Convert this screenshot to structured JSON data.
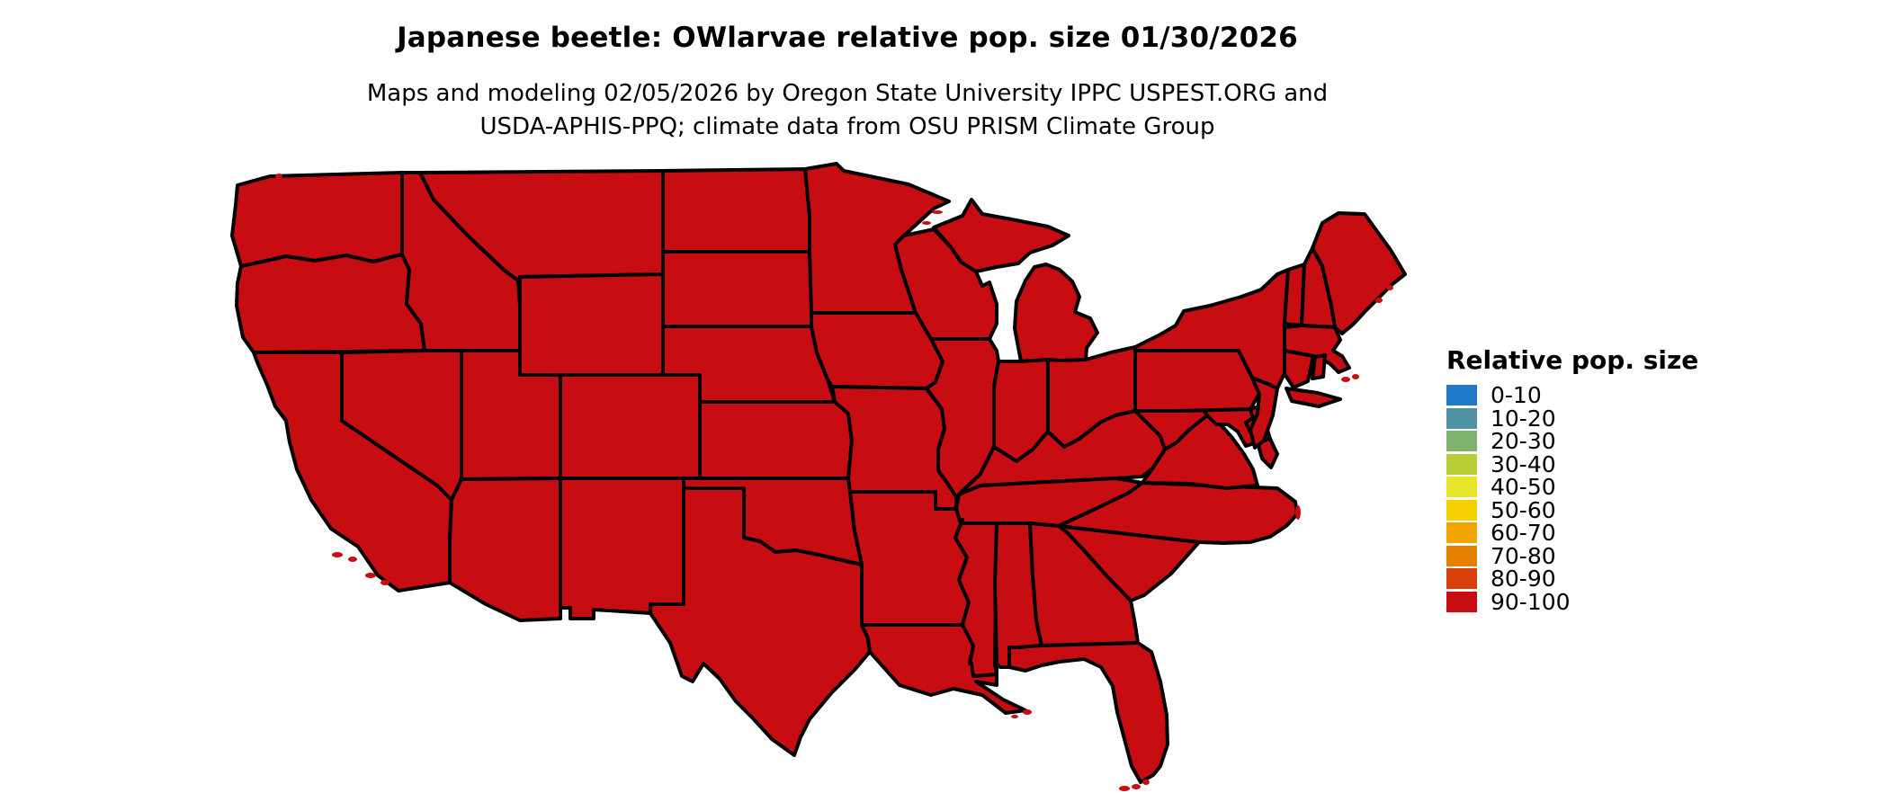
{
  "header": {
    "title": "Japanese beetle: OWlarvae relative pop. size 01/30/2026",
    "subtitle_line1": "Maps and modeling 02/05/2026 by Oregon State University IPPC USPEST.ORG and",
    "subtitle_line2": "USDA-APHIS-PPQ; climate data from OSU PRISM Climate Group"
  },
  "legend": {
    "title": "Relative pop. size",
    "items": [
      {
        "label": "0-10",
        "color": "#1f78c8"
      },
      {
        "label": "10-20",
        "color": "#4f93a2"
      },
      {
        "label": "20-30",
        "color": "#7eb36e"
      },
      {
        "label": "30-40",
        "color": "#b9cf35"
      },
      {
        "label": "40-50",
        "color": "#e8e62b"
      },
      {
        "label": "50-60",
        "color": "#f5d000"
      },
      {
        "label": "60-70",
        "color": "#efa400"
      },
      {
        "label": "70-80",
        "color": "#e67e00"
      },
      {
        "label": "80-90",
        "color": "#d94009"
      },
      {
        "label": "90-100",
        "color": "#c80d12"
      }
    ]
  },
  "map": {
    "region": "Contiguous United States",
    "fill_class": "90-100",
    "fill_color": "#c80d12",
    "border_color": "#000000",
    "background_color": "#ffffff"
  },
  "chart_data": {
    "type": "choropleth_map",
    "title": "Japanese beetle: OWlarvae relative pop. size 01/30/2026",
    "region": "Contiguous United States (all 48 states shown)",
    "classes": [
      "0-10",
      "10-20",
      "20-30",
      "30-40",
      "40-50",
      "50-60",
      "60-70",
      "70-80",
      "80-90",
      "90-100"
    ],
    "class_colors": [
      "#1f78c8",
      "#4f93a2",
      "#7eb36e",
      "#b9cf35",
      "#e8e62b",
      "#f5d000",
      "#efa400",
      "#e67e00",
      "#d94009",
      "#c80d12"
    ],
    "legend_title": "Relative pop. size",
    "legend_position": "right",
    "observation": "Every state in the visible map is filled with the 90-100 class color"
  }
}
